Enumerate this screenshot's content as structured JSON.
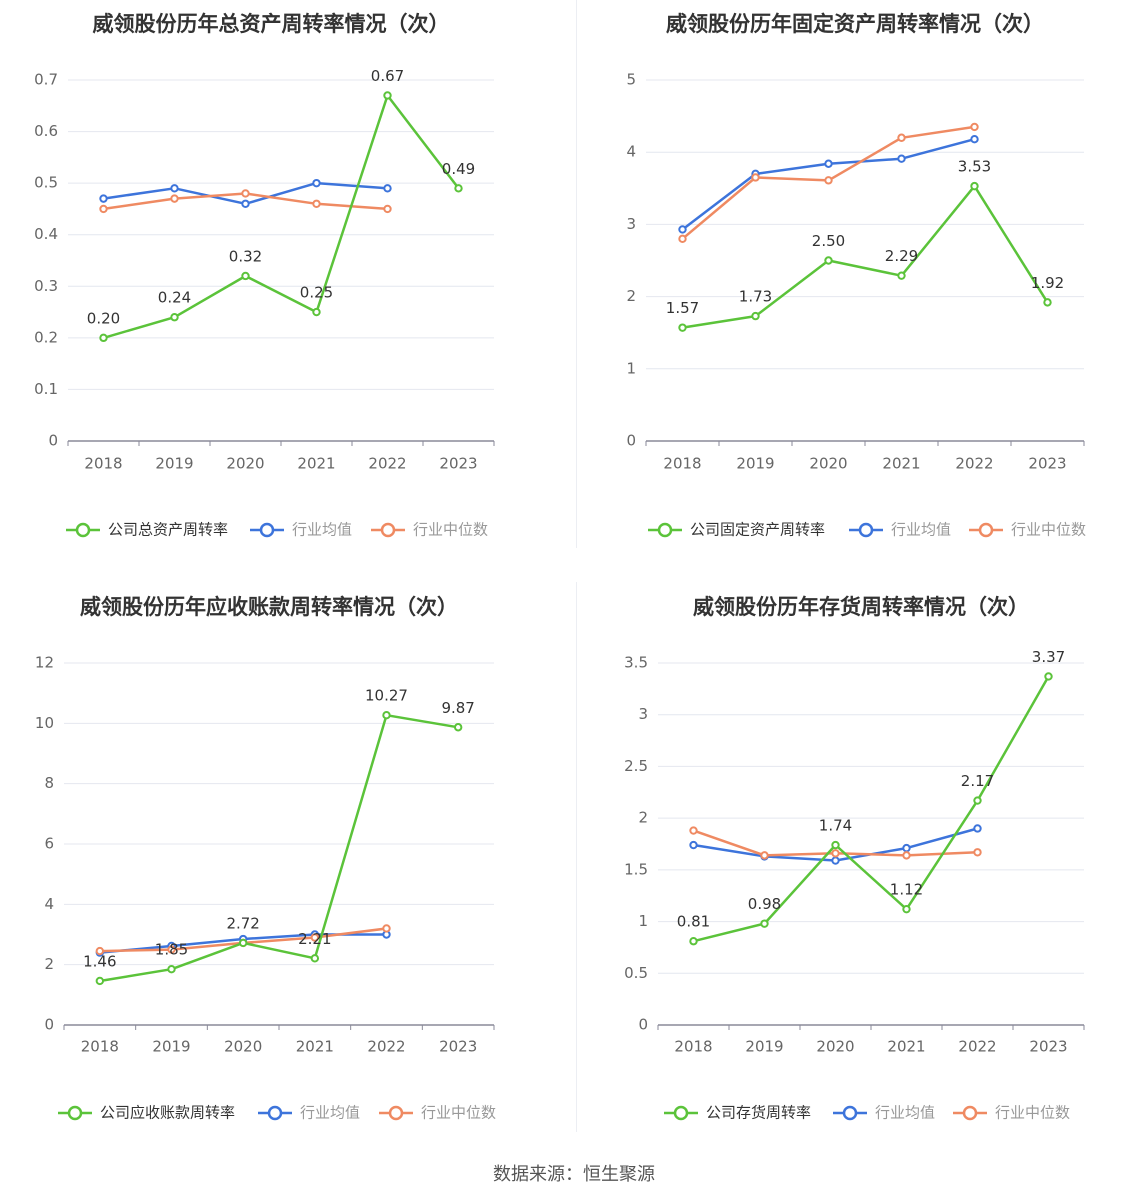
{
  "source_text": "数据来源：恒生聚源",
  "colors": {
    "company": "#5bc33a",
    "industry_avg": "#3d74db",
    "industry_median": "#ef8a62",
    "grid": "#e4e7ef",
    "axis": "#8a8a99",
    "tick_text": "#666666"
  },
  "chart_data": [
    {
      "type": "line",
      "title": "威领股份历年总资产周转率情况（次）",
      "categories": [
        "2018",
        "2019",
        "2020",
        "2021",
        "2022",
        "2023"
      ],
      "y_ticks": [
        "0",
        "0.1",
        "0.2",
        "0.3",
        "0.4",
        "0.5",
        "0.6",
        "0.7"
      ],
      "ylim": [
        0,
        0.7
      ],
      "series": [
        {
          "name": "公司总资产周转率",
          "values": [
            0.2,
            0.24,
            0.32,
            0.25,
            0.67,
            0.49
          ],
          "labels": [
            "0.20",
            "0.24",
            "0.32",
            "0.25",
            "0.67",
            "0.49"
          ]
        },
        {
          "name": "行业均值",
          "values": [
            0.47,
            0.49,
            0.46,
            0.5,
            0.49,
            null
          ]
        },
        {
          "name": "行业中位数",
          "values": [
            0.45,
            0.47,
            0.48,
            0.46,
            0.45,
            null
          ]
        }
      ],
      "legend": "bottom"
    },
    {
      "type": "line",
      "title": "威领股份历年固定资产周转率情况（次）",
      "categories": [
        "2018",
        "2019",
        "2020",
        "2021",
        "2022",
        "2023"
      ],
      "y_ticks": [
        "0",
        "1",
        "2",
        "3",
        "4",
        "5"
      ],
      "ylim": [
        0,
        5
      ],
      "series": [
        {
          "name": "公司固定资产周转率",
          "values": [
            1.57,
            1.73,
            2.5,
            2.29,
            3.53,
            1.92
          ],
          "labels": [
            "1.57",
            "1.73",
            "2.50",
            "2.29",
            "3.53",
            "1.92"
          ]
        },
        {
          "name": "行业均值",
          "values": [
            2.93,
            3.7,
            3.84,
            3.91,
            4.18,
            null
          ]
        },
        {
          "name": "行业中位数",
          "values": [
            2.8,
            3.65,
            3.61,
            4.2,
            4.35,
            null
          ]
        }
      ],
      "legend": "bottom"
    },
    {
      "type": "line",
      "title": "威领股份历年应收账款周转率情况（次）",
      "categories": [
        "2018",
        "2019",
        "2020",
        "2021",
        "2022",
        "2023"
      ],
      "y_ticks": [
        "0",
        "2",
        "4",
        "6",
        "8",
        "10",
        "12"
      ],
      "ylim": [
        0,
        12
      ],
      "series": [
        {
          "name": "公司应收账款周转率",
          "values": [
            1.46,
            1.85,
            2.72,
            2.21,
            10.27,
            9.87
          ],
          "labels": [
            "1.46",
            "1.85",
            "2.72",
            "2.21",
            "10.27",
            "9.87"
          ]
        },
        {
          "name": "行业均值",
          "values": [
            2.4,
            2.62,
            2.85,
            3.0,
            3.0,
            null
          ]
        },
        {
          "name": "行业中位数",
          "values": [
            2.45,
            2.5,
            2.72,
            2.9,
            3.2,
            null
          ]
        }
      ],
      "legend": "bottom"
    },
    {
      "type": "line",
      "title": "威领股份历年存货周转率情况（次）",
      "categories": [
        "2018",
        "2019",
        "2020",
        "2021",
        "2022",
        "2023"
      ],
      "y_ticks": [
        "0",
        "0.5",
        "1",
        "1.5",
        "2",
        "2.5",
        "3",
        "3.5"
      ],
      "ylim": [
        0,
        3.5
      ],
      "series": [
        {
          "name": "公司存货周转率",
          "values": [
            0.81,
            0.98,
            1.74,
            1.12,
            2.17,
            3.37
          ],
          "labels": [
            "0.81",
            "0.98",
            "1.74",
            "1.12",
            "2.17",
            "3.37"
          ]
        },
        {
          "name": "行业均值",
          "values": [
            1.74,
            1.63,
            1.59,
            1.71,
            1.9,
            null
          ]
        },
        {
          "name": "行业中位数",
          "values": [
            1.88,
            1.64,
            1.66,
            1.64,
            1.67,
            null
          ]
        }
      ],
      "legend": "bottom"
    }
  ]
}
